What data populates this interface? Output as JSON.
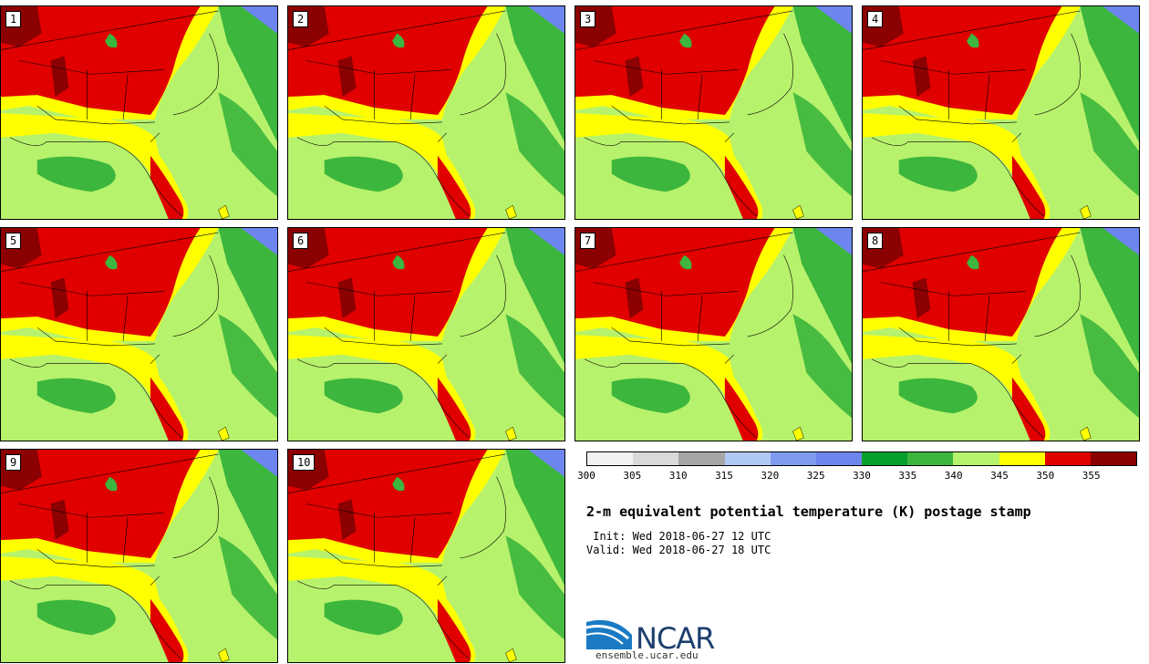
{
  "panels": [
    "1",
    "2",
    "3",
    "4",
    "5",
    "6",
    "7",
    "8",
    "9",
    "10"
  ],
  "colorbar": {
    "colors": [
      "#f2f2f2",
      "#d9d9d9",
      "#a6a6a6",
      "#b0c8f4",
      "#7d9cf0",
      "#6d86ef",
      "#06a02f",
      "#3cb63c",
      "#b7f26c",
      "#ffff00",
      "#e00000",
      "#8b0000"
    ],
    "ticks": [
      "300",
      "305",
      "310",
      "315",
      "320",
      "325",
      "330",
      "335",
      "340",
      "345",
      "350",
      "355"
    ]
  },
  "title": "2-m equivalent potential temperature (K) postage stamp",
  "init": " Init: Wed 2018-06-27 12 UTC",
  "valid": "Valid: Wed 2018-06-27 18 UTC",
  "logo": {
    "name": "NCAR",
    "url": "ensemble.ucar.edu"
  }
}
